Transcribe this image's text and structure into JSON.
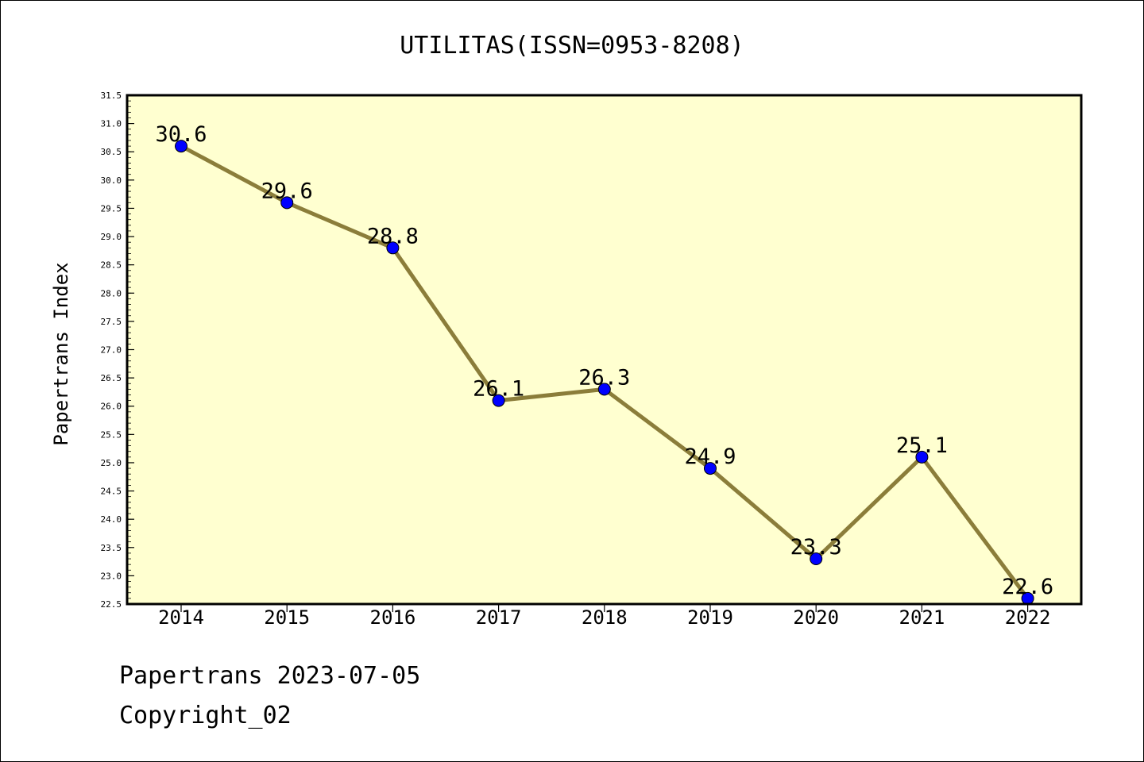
{
  "chart_data": {
    "type": "line",
    "title": "UTILITAS(ISSN=0953-8208)",
    "xlabel": "",
    "ylabel": "Papertrans Index",
    "categories": [
      "2014",
      "2015",
      "2016",
      "2017",
      "2018",
      "2019",
      "2020",
      "2021",
      "2022"
    ],
    "series": [
      {
        "values": [
          30.6,
          29.6,
          28.8,
          26.1,
          26.3,
          24.9,
          23.3,
          25.1,
          22.6
        ],
        "data_labels": [
          "30.6",
          "29.6",
          "28.8",
          "26.1",
          "26.3",
          "24.9",
          "23.3",
          "25.1",
          "22.6"
        ]
      }
    ],
    "ylim": [
      22.5,
      31.5
    ],
    "y_ticks": [
      "22.5",
      "23.0",
      "23.5",
      "24.0",
      "24.5",
      "25.0",
      "25.5",
      "26.0",
      "26.5",
      "27.0",
      "27.5",
      "28.0",
      "28.5",
      "29.0",
      "29.5",
      "30.0",
      "30.5",
      "31.0",
      "31.5"
    ],
    "grid": false,
    "colors": {
      "plot_background": "#ffffd0",
      "line": "#8b7d3a",
      "marker": "#0000ff",
      "axes": "#000000"
    }
  },
  "footer": {
    "date_line": "Papertrans 2023-07-05",
    "copyright_line": "Copyright_02"
  }
}
